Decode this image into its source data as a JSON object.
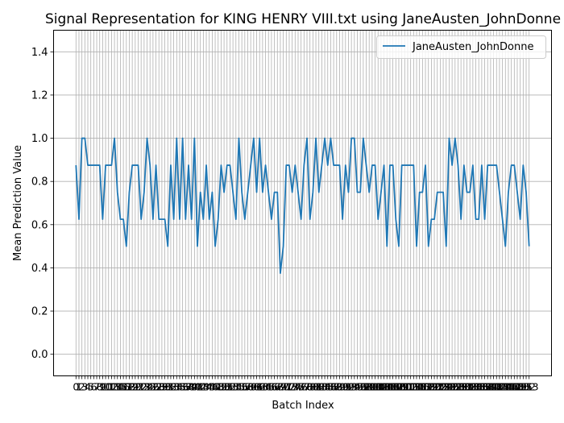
{
  "chart_data": {
    "type": "line",
    "title": "Signal Representation for KING HENRY VIII.txt using JaneAusten_JohnDonne",
    "xlabel": "Batch Index",
    "ylabel": "Mean Prediction Value",
    "ylim": [
      -0.1,
      1.5
    ],
    "yticks": [
      0.0,
      0.2,
      0.4,
      0.6,
      0.8,
      1.0,
      1.2,
      1.4
    ],
    "ytick_labels": [
      "0.0",
      "0.2",
      "0.4",
      "0.6",
      "0.8",
      "1.0",
      "1.2",
      "1.4"
    ],
    "grid": true,
    "legend_position": "top-right",
    "line_color": "#1f77b4",
    "series": [
      {
        "name": "JaneAusten_JohnDonne",
        "values": [
          0.875,
          0.625,
          1.0,
          1.0,
          0.875,
          0.875,
          0.875,
          0.875,
          0.875,
          0.625,
          0.875,
          0.875,
          0.875,
          1.0,
          0.75,
          0.625,
          0.625,
          0.5,
          0.75,
          0.875,
          0.875,
          0.875,
          0.625,
          0.75,
          1.0,
          0.875,
          0.625,
          0.875,
          0.625,
          0.625,
          0.625,
          0.5,
          0.875,
          0.625,
          1.0,
          0.625,
          1.0,
          0.625,
          0.875,
          0.625,
          1.0,
          0.5,
          0.75,
          0.625,
          0.875,
          0.625,
          0.75,
          0.5,
          0.625,
          0.875,
          0.75,
          0.875,
          0.875,
          0.75,
          0.625,
          1.0,
          0.75,
          0.625,
          0.75,
          0.875,
          1.0,
          0.75,
          1.0,
          0.75,
          0.875,
          0.75,
          0.625,
          0.75,
          0.75,
          0.375,
          0.5,
          0.875,
          0.875,
          0.75,
          0.875,
          0.75,
          0.625,
          0.875,
          1.0,
          0.625,
          0.75,
          1.0,
          0.75,
          0.875,
          1.0,
          0.875,
          1.0,
          0.875,
          0.875,
          0.875,
          0.625,
          0.875,
          0.75,
          1.0,
          1.0,
          0.75,
          0.75,
          1.0,
          0.875,
          0.75,
          0.875,
          0.875,
          0.625,
          0.75,
          0.875,
          0.5,
          0.875,
          0.875,
          0.625,
          0.5,
          0.875,
          0.875,
          0.875,
          0.875,
          0.875,
          0.5,
          0.75,
          0.75,
          0.875,
          0.5,
          0.625,
          0.625,
          0.75,
          0.75,
          0.75,
          0.5,
          1.0,
          0.875,
          1.0,
          0.875,
          0.625,
          0.875,
          0.75,
          0.75,
          0.875,
          0.625,
          0.625,
          0.875,
          0.625,
          0.875,
          0.875,
          0.875,
          0.875,
          0.75,
          0.625,
          0.5,
          0.75,
          0.875,
          0.875,
          0.75,
          0.625,
          0.875,
          0.75,
          0.5
        ]
      }
    ]
  }
}
